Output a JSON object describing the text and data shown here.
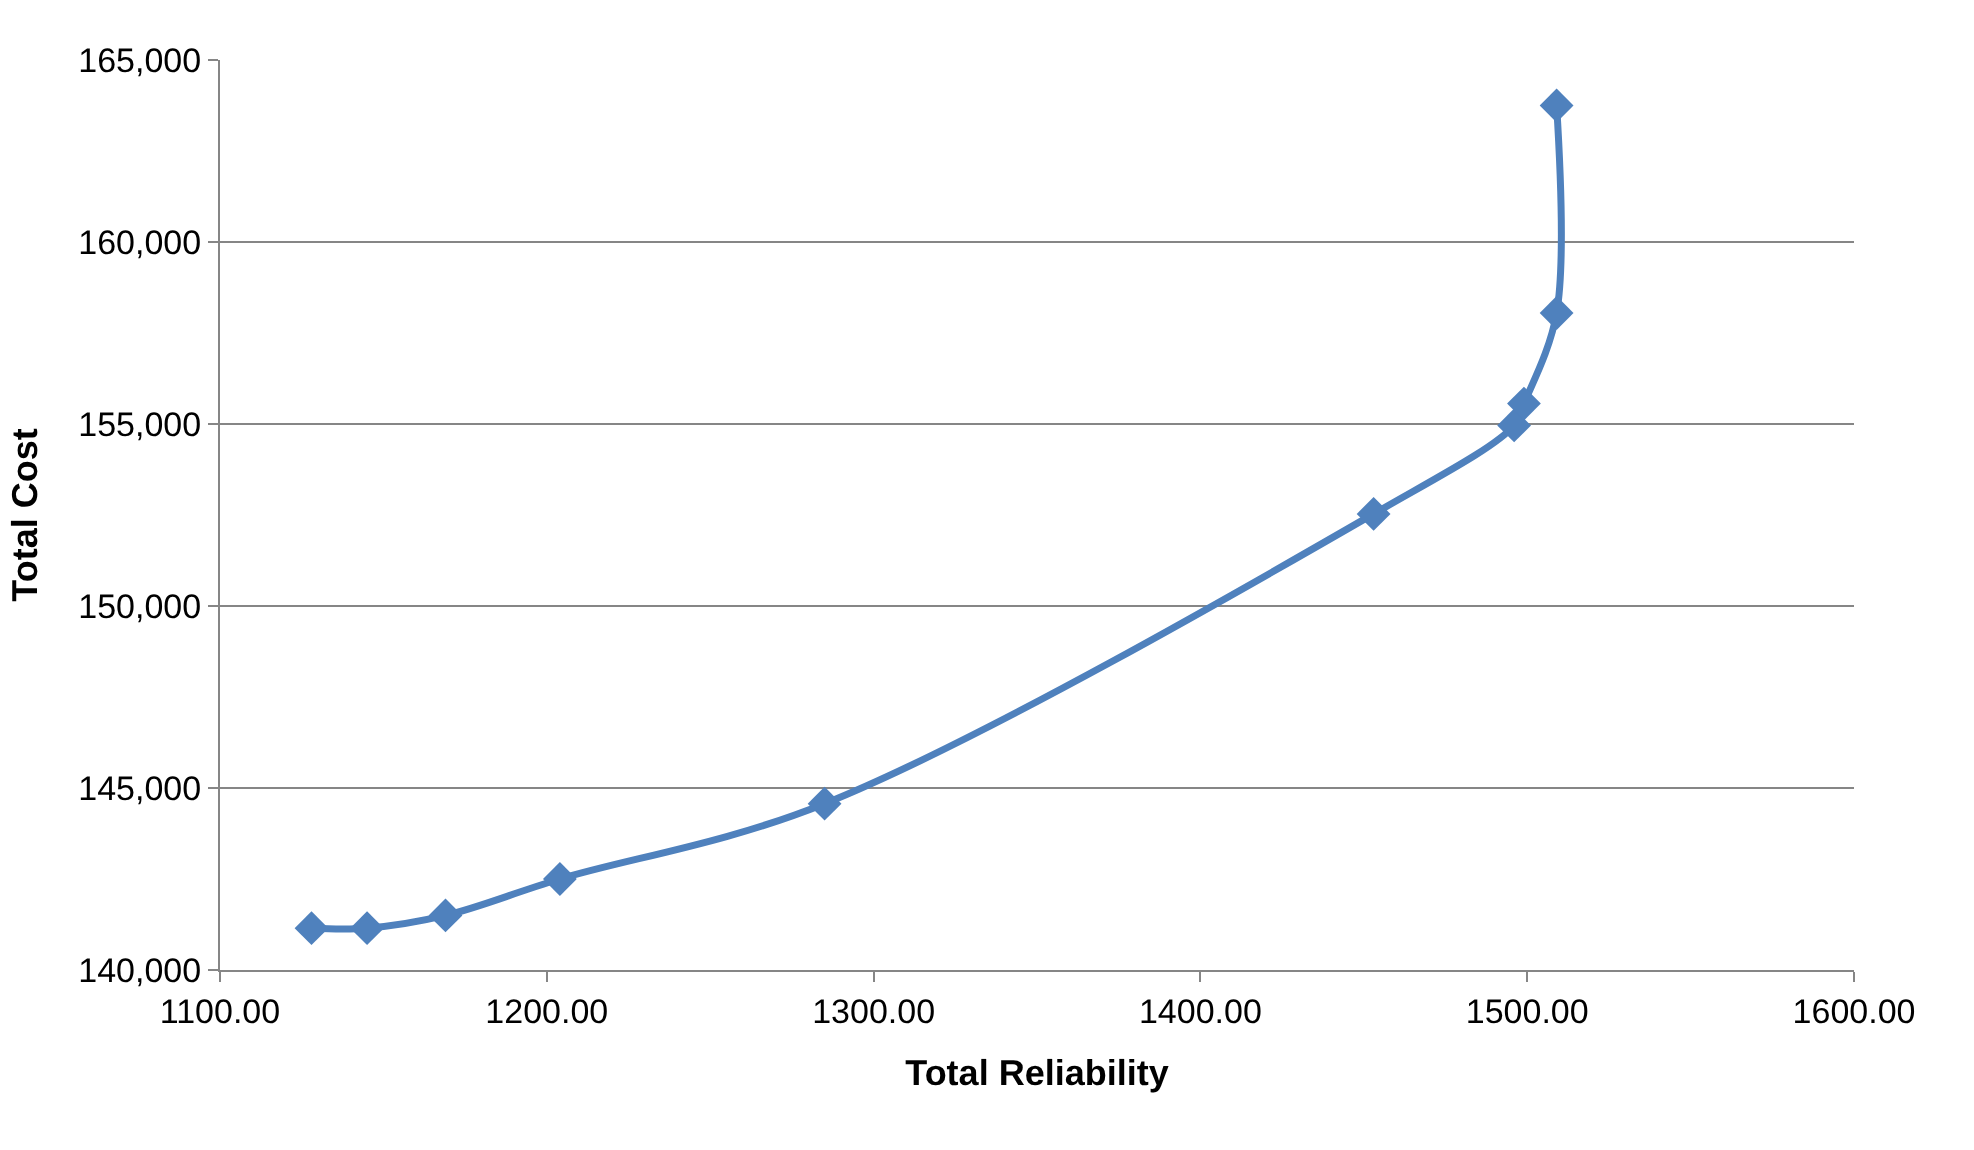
{
  "chart_data": {
    "type": "line",
    "xlabel": "Total Reliability",
    "ylabel": "Total Cost",
    "x": [
      1128,
      1145,
      1169,
      1204,
      1285,
      1453,
      1496,
      1499,
      1509,
      1509
    ],
    "series": [
      {
        "color": "#4f81bd",
        "values": [
          141150,
          141150,
          141500,
          142500,
          144570,
          152530,
          154960,
          155560,
          158050,
          163750
        ]
      }
    ],
    "xlim": [
      1100,
      1600
    ],
    "xticks": [
      {
        "value": 1100,
        "label": "1100.00"
      },
      {
        "value": 1200,
        "label": "1200.00"
      },
      {
        "value": 1300,
        "label": "1300.00"
      },
      {
        "value": 1400,
        "label": "1400.00"
      },
      {
        "value": 1500,
        "label": "1500.00"
      },
      {
        "value": 1600,
        "label": "1600.00"
      }
    ],
    "ylim": [
      140000,
      165000
    ],
    "yticks": [
      {
        "value": 140000,
        "label": "140,000"
      },
      {
        "value": 145000,
        "label": "145,000"
      },
      {
        "value": 150000,
        "label": "150,000"
      },
      {
        "value": 155000,
        "label": "155,000"
      },
      {
        "value": 160000,
        "label": "160,000"
      },
      {
        "value": 165000,
        "label": "165,000"
      }
    ],
    "grid": "y",
    "marker": "diamond",
    "line_style": "solid",
    "legend": false
  }
}
